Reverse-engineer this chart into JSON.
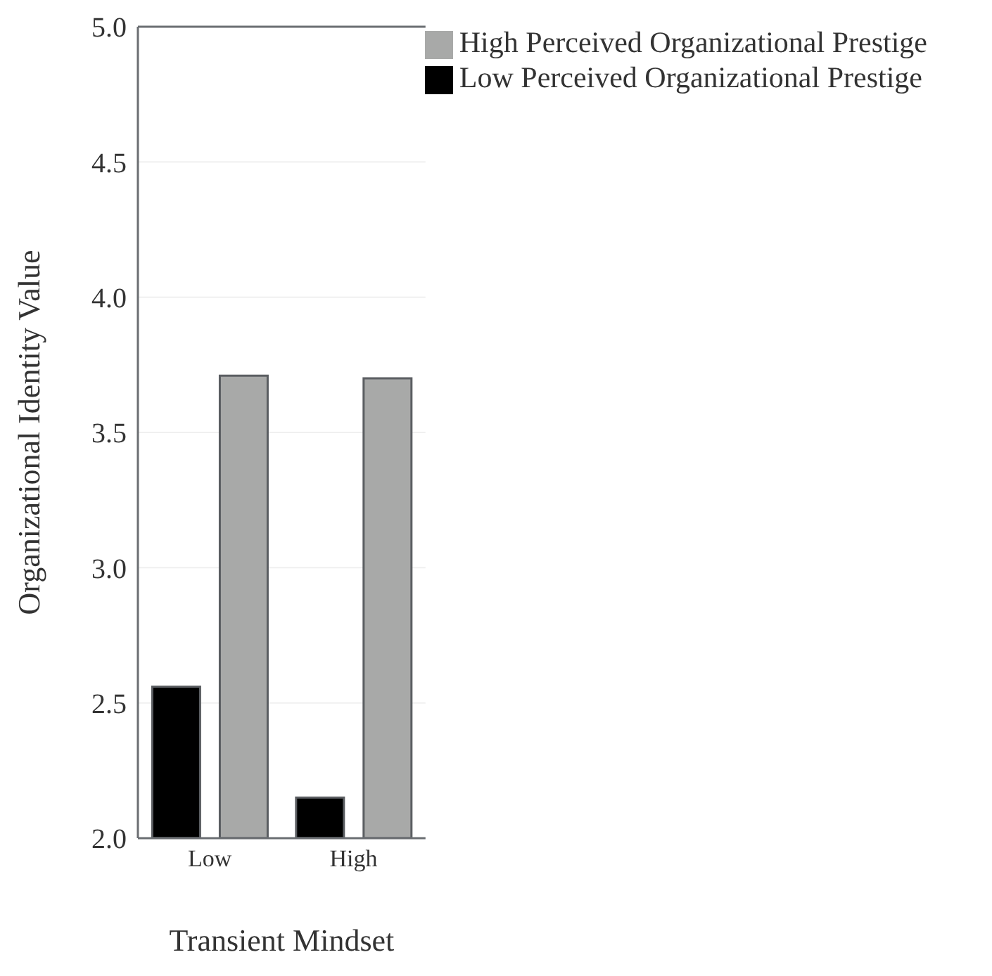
{
  "chart_data": {
    "type": "bar",
    "xlabel": "Transient Mindset",
    "ylabel": "Organizational Identity Value",
    "categories": [
      "Low",
      "High"
    ],
    "series": [
      {
        "name": "Low Perceived Organizational Prestige",
        "color": "#000000",
        "values": [
          2.56,
          2.15
        ]
      },
      {
        "name": "High Perceived Organizational Prestige",
        "color": "#a8a9a8",
        "values": [
          3.71,
          3.7
        ]
      }
    ],
    "ylim": [
      2.0,
      5.0
    ],
    "yticks": [
      {
        "value": 2.0,
        "label": "2.0"
      },
      {
        "value": 2.5,
        "label": "2.5"
      },
      {
        "value": 3.0,
        "label": "3.0"
      },
      {
        "value": 3.5,
        "label": "3.5"
      },
      {
        "value": 4.0,
        "label": "4.0"
      },
      {
        "value": 4.5,
        "label": "4.5"
      },
      {
        "value": 5.0,
        "label": "5.0"
      }
    ],
    "grid": "y",
    "legend": "top right"
  }
}
